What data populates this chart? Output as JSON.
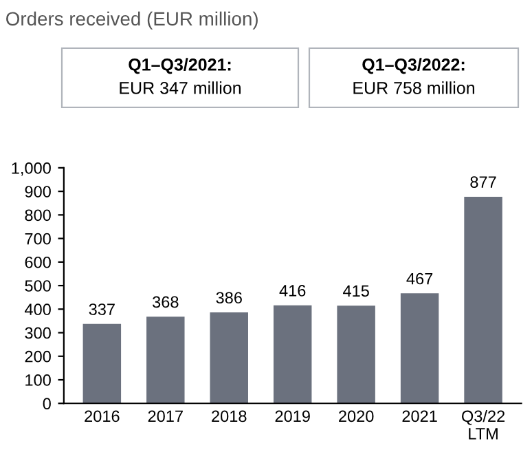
{
  "chart_data": {
    "type": "bar",
    "title": "Orders received (EUR million)",
    "categories": [
      "2016",
      "2017",
      "2018",
      "2019",
      "2020",
      "2021",
      "Q3/22\nLTM"
    ],
    "values": [
      337,
      368,
      386,
      416,
      415,
      467,
      877
    ],
    "color": "#6b717e",
    "ylim": [
      0,
      1000
    ],
    "yticks": [
      0,
      100,
      200,
      300,
      400,
      500,
      600,
      700,
      800,
      900,
      {
        "value": 1000,
        "label": "1,000"
      }
    ],
    "data_labels": true,
    "grid": false,
    "annotations": [
      "Q1–Q3/2021:\nEUR 347 million",
      "Q1–Q3/2022:\nEUR 758 million"
    ]
  }
}
